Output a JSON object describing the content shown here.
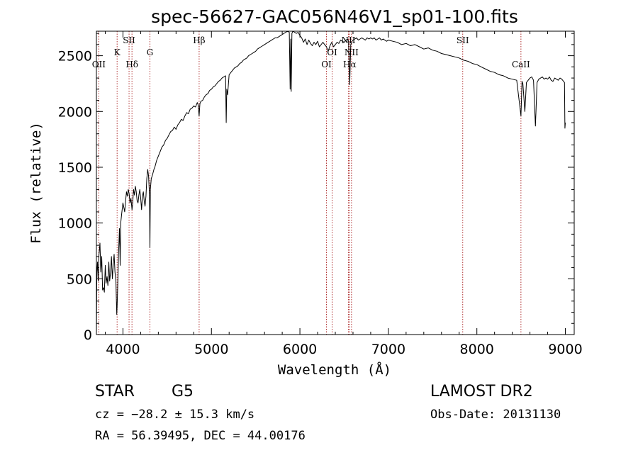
{
  "chart_data": {
    "type": "line",
    "title": "spec-56627-GAC056N46V1_sp01-100.fits",
    "xlabel": "Wavelength (Å)",
    "ylabel": "Flux (relative)",
    "xlim": [
      3700,
      9100
    ],
    "ylim": [
      0,
      2720
    ],
    "xticks": [
      4000,
      5000,
      6000,
      7000,
      8000,
      9000
    ],
    "yticks": [
      0,
      500,
      1000,
      1500,
      2000,
      2500
    ],
    "spectral_lines": [
      {
        "name": "OII",
        "wavelength": 3727,
        "position": "low"
      },
      {
        "name": "K",
        "wavelength": 3934,
        "position": "mid"
      },
      {
        "name": "SII",
        "wavelength": 4069,
        "position": "high"
      },
      {
        "name": "Hδ",
        "wavelength": 4102,
        "position": "low"
      },
      {
        "name": "G",
        "wavelength": 4305,
        "position": "mid"
      },
      {
        "name": "Hβ",
        "wavelength": 4861,
        "position": "high"
      },
      {
        "name": "OI",
        "wavelength": 6300,
        "position": "low"
      },
      {
        "name": "OI",
        "wavelength": 6364,
        "position": "mid"
      },
      {
        "name": "NII",
        "wavelength": 6548,
        "position": "high"
      },
      {
        "name": "Hα",
        "wavelength": 6563,
        "position": "low"
      },
      {
        "name": "NII",
        "wavelength": 6583,
        "position": "mid"
      },
      {
        "name": "SII",
        "wavelength": 7840,
        "position": "high"
      },
      {
        "name": "CaII",
        "wavelength": 8498,
        "position": "low"
      }
    ],
    "series": [
      {
        "name": "spectrum",
        "x": [
          3700,
          3705,
          3712,
          3720,
          3730,
          3740,
          3750,
          3760,
          3770,
          3780,
          3790,
          3800,
          3810,
          3820,
          3830,
          3840,
          3850,
          3860,
          3870,
          3880,
          3890,
          3900,
          3910,
          3920,
          3930,
          3934,
          3940,
          3950,
          3960,
          3968,
          3975,
          3985,
          4000,
          4010,
          4020,
          4030,
          4040,
          4050,
          4060,
          4070,
          4080,
          4090,
          4102,
          4110,
          4120,
          4130,
          4140,
          4150,
          4160,
          4170,
          4180,
          4190,
          4200,
          4210,
          4220,
          4230,
          4240,
          4250,
          4260,
          4270,
          4280,
          4290,
          4300,
          4305,
          4310,
          4320,
          4330,
          4340,
          4350,
          4360,
          4380,
          4400,
          4420,
          4440,
          4460,
          4480,
          4500,
          4520,
          4540,
          4560,
          4580,
          4600,
          4620,
          4640,
          4660,
          4680,
          4700,
          4720,
          4740,
          4760,
          4780,
          4800,
          4820,
          4840,
          4850,
          4861,
          4870,
          4880,
          4900,
          4920,
          4940,
          4960,
          4980,
          5000,
          5020,
          5040,
          5060,
          5080,
          5100,
          5120,
          5140,
          5160,
          5167,
          5173,
          5183,
          5200,
          5220,
          5240,
          5260,
          5280,
          5300,
          5320,
          5340,
          5360,
          5380,
          5400,
          5420,
          5440,
          5460,
          5480,
          5500,
          5520,
          5540,
          5560,
          5580,
          5600,
          5620,
          5640,
          5660,
          5680,
          5700,
          5720,
          5740,
          5760,
          5780,
          5800,
          5820,
          5840,
          5860,
          5880,
          5890,
          5896,
          5902,
          5910,
          5920,
          5940,
          5960,
          5980,
          6000,
          6020,
          6040,
          6060,
          6080,
          6100,
          6120,
          6140,
          6160,
          6180,
          6200,
          6220,
          6240,
          6260,
          6280,
          6300,
          6320,
          6340,
          6360,
          6380,
          6400,
          6420,
          6440,
          6460,
          6480,
          6500,
          6520,
          6540,
          6550,
          6563,
          6575,
          6590,
          6600,
          6620,
          6640,
          6660,
          6680,
          6700,
          6720,
          6740,
          6760,
          6780,
          6800,
          6820,
          6840,
          6860,
          6880,
          6900,
          6920,
          6940,
          6960,
          6980,
          7000,
          7050,
          7100,
          7150,
          7200,
          7250,
          7300,
          7350,
          7400,
          7450,
          7500,
          7550,
          7600,
          7650,
          7700,
          7750,
          7800,
          7850,
          7900,
          7950,
          8000,
          8050,
          8100,
          8150,
          8200,
          8250,
          8300,
          8350,
          8400,
          8450,
          8498,
          8510,
          8520,
          8542,
          8560,
          8580,
          8600,
          8620,
          8640,
          8662,
          8680,
          8700,
          8720,
          8740,
          8760,
          8780,
          8800,
          8820,
          8840,
          8860,
          8880,
          8900,
          8920,
          8940,
          8960,
          8980,
          8990,
          8995,
          9000
        ],
        "values": [
          0,
          560,
          650,
          480,
          720,
          820,
          560,
          700,
          400,
          420,
          380,
          620,
          460,
          520,
          440,
          650,
          480,
          560,
          700,
          500,
          620,
          720,
          560,
          480,
          180,
          250,
          420,
          720,
          950,
          620,
          1000,
          1080,
          1180,
          1140,
          1100,
          1200,
          1280,
          1240,
          1300,
          1260,
          1180,
          1220,
          1120,
          1180,
          1300,
          1250,
          1330,
          1280,
          1200,
          1180,
          1250,
          1300,
          1230,
          1120,
          1240,
          1280,
          1200,
          1150,
          1240,
          1400,
          1480,
          1420,
          1250,
          780,
          1300,
          1400,
          1420,
          1450,
          1480,
          1500,
          1560,
          1600,
          1640,
          1680,
          1700,
          1740,
          1760,
          1790,
          1820,
          1830,
          1860,
          1840,
          1880,
          1900,
          1930,
          1920,
          1960,
          1990,
          1980,
          2020,
          2030,
          2050,
          2040,
          2080,
          2060,
          1960,
          2070,
          2090,
          2100,
          2130,
          2150,
          2160,
          2190,
          2200,
          2220,
          2230,
          2250,
          2270,
          2280,
          2300,
          2310,
          2320,
          1900,
          2200,
          2150,
          2330,
          2350,
          2370,
          2390,
          2400,
          2410,
          2430,
          2440,
          2460,
          2470,
          2480,
          2500,
          2510,
          2520,
          2530,
          2540,
          2560,
          2570,
          2580,
          2590,
          2600,
          2610,
          2620,
          2630,
          2640,
          2650,
          2660,
          2660,
          2670,
          2680,
          2690,
          2700,
          2710,
          2720,
          2710,
          2200,
          2650,
          2180,
          2700,
          2720,
          2710,
          2700,
          2710,
          2680,
          2660,
          2620,
          2650,
          2600,
          2640,
          2610,
          2590,
          2620,
          2600,
          2630,
          2580,
          2600,
          2620,
          2600,
          2580,
          2540,
          2590,
          2620,
          2580,
          2600,
          2620,
          2610,
          2640,
          2630,
          2620,
          2640,
          2650,
          2630,
          2240,
          2600,
          2630,
          2640,
          2650,
          2660,
          2640,
          2650,
          2660,
          2650,
          2640,
          2660,
          2650,
          2660,
          2650,
          2660,
          2640,
          2650,
          2660,
          2640,
          2650,
          2640,
          2630,
          2640,
          2630,
          2620,
          2600,
          2610,
          2590,
          2600,
          2580,
          2560,
          2570,
          2550,
          2540,
          2520,
          2510,
          2500,
          2490,
          2480,
          2460,
          2450,
          2430,
          2420,
          2400,
          2380,
          2360,
          2350,
          2330,
          2320,
          2300,
          2290,
          2280,
          1960,
          2270,
          2250,
          2000,
          2260,
          2280,
          2300,
          2310,
          2280,
          1870,
          2260,
          2290,
          2300,
          2310,
          2290,
          2300,
          2290,
          2310,
          2280,
          2270,
          2300,
          2290,
          2280,
          2300,
          2290,
          2270,
          2260,
          1850,
          1900
        ]
      }
    ]
  },
  "info": {
    "object_type": "STAR",
    "subclass": "G5",
    "survey": "LAMOST DR2",
    "cz": "cz = −28.2 ± 15.3 km/s",
    "obs_date": "Obs-Date: 20131130",
    "coords": "RA =  56.39495, DEC =  44.00176"
  }
}
